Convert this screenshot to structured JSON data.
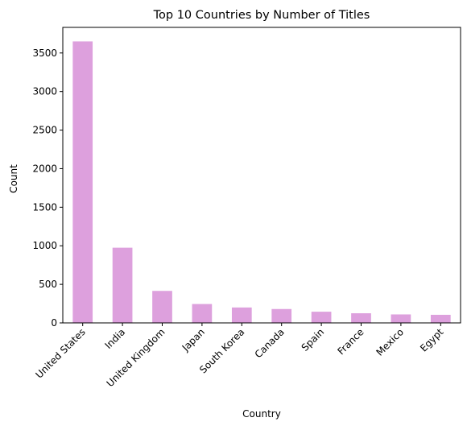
{
  "chart_data": {
    "type": "bar",
    "title": "Top 10 Countries by Number of Titles",
    "xlabel": "Country",
    "ylabel": "Count",
    "categories": [
      "United States",
      "India",
      "United Kingdom",
      "Japan",
      "South Korea",
      "Canada",
      "Spain",
      "France",
      "Mexico",
      "Egypt"
    ],
    "values": [
      3650,
      975,
      415,
      245,
      200,
      180,
      145,
      125,
      110,
      105
    ],
    "ylim": [
      0,
      3832
    ],
    "yticks": [
      0,
      500,
      1000,
      1500,
      2000,
      2500,
      3000,
      3500
    ],
    "xtick_rotation": 45,
    "grid": false,
    "legend": "none",
    "bar_color": "#dda0dd"
  }
}
